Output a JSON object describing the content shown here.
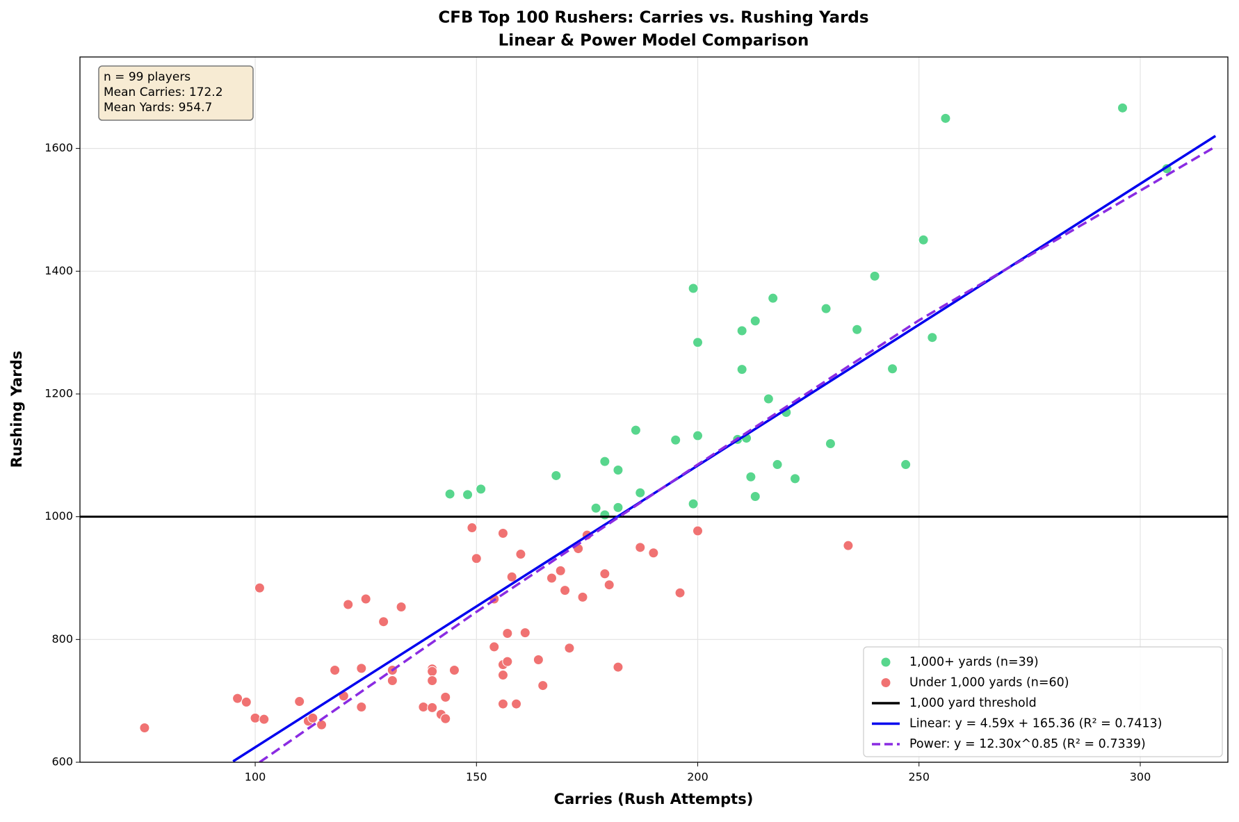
{
  "chart_data": {
    "type": "scatter",
    "title": "CFB Top 100 Rushers: Carries vs. Rushing Yards",
    "subtitle": "Linear & Power Model Comparison",
    "xlabel": "Carries (Rush Attempts)",
    "ylabel": "Rushing Yards",
    "xlim": [
      60.4,
      319.8
    ],
    "ylim": [
      600,
      1749
    ],
    "xticks": [
      100,
      150,
      200,
      250,
      300
    ],
    "yticks": [
      600,
      800,
      1000,
      1200,
      1400,
      1600
    ],
    "grid": true,
    "legend": "lower right",
    "info": [
      "n = 99 players",
      "Mean Carries: 172.2",
      "Mean Yards: 954.7"
    ],
    "series": [
      {
        "name": "1,000+ yards (n=39)",
        "kind": "scatter",
        "color": "#58d68d",
        "x": [
          144,
          148,
          151,
          168,
          177,
          179,
          179,
          182,
          182,
          186,
          187,
          195,
          199,
          199,
          200,
          200,
          209,
          210,
          210,
          211,
          212,
          213,
          213,
          216,
          217,
          218,
          220,
          222,
          229,
          230,
          236,
          240,
          244,
          247,
          251,
          253,
          256,
          296,
          306
        ],
        "values": [
          1037,
          1036,
          1045,
          1067,
          1014,
          1003,
          1090,
          1076,
          1015,
          1141,
          1039,
          1125,
          1372,
          1021,
          1284,
          1132,
          1126,
          1303,
          1240,
          1128,
          1065,
          1319,
          1033,
          1192,
          1356,
          1085,
          1170,
          1062,
          1339,
          1119,
          1305,
          1392,
          1241,
          1085,
          1451,
          1292,
          1649,
          1666,
          1567
        ]
      },
      {
        "name": "Under 1,000 yards (n=60)",
        "kind": "scatter",
        "color": "#f07272",
        "x": [
          75,
          96,
          98,
          100,
          101,
          102,
          110,
          112,
          113,
          115,
          118,
          120,
          121,
          124,
          124,
          125,
          129,
          131,
          131,
          133,
          138,
          140,
          140,
          140,
          140,
          142,
          143,
          143,
          145,
          149,
          150,
          154,
          154,
          156,
          156,
          156,
          156,
          157,
          157,
          158,
          159,
          160,
          161,
          164,
          165,
          167,
          169,
          170,
          171,
          173,
          174,
          175,
          179,
          180,
          182,
          187,
          190,
          196,
          200,
          234
        ],
        "values": [
          656,
          704,
          698,
          672,
          884,
          670,
          699,
          667,
          672,
          661,
          750,
          708,
          857,
          753,
          690,
          866,
          829,
          750,
          733,
          853,
          690,
          752,
          748,
          733,
          689,
          678,
          706,
          671,
          750,
          982,
          932,
          788,
          866,
          973,
          759,
          742,
          695,
          810,
          764,
          902,
          695,
          939,
          811,
          767,
          725,
          900,
          912,
          880,
          786,
          948,
          869,
          970,
          907,
          889,
          755,
          950,
          941,
          876,
          977,
          953
        ]
      },
      {
        "name": "1,000 yard threshold",
        "kind": "hline",
        "color": "#000000",
        "values": [
          1000
        ]
      },
      {
        "name": "Linear: y = 4.59x + 165.36 (R² = 0.7413)",
        "kind": "line",
        "color": "#0000ee",
        "x": [
          95,
          317
        ],
        "values": [
          601.4,
          1620.4
        ]
      },
      {
        "name": "Power: y = 12.30x^0.85 (R² = 0.7339)",
        "kind": "line",
        "style": "dashed",
        "color": "#8a2be2",
        "x": [
          101,
          150,
          200,
          250,
          317
        ],
        "values": [
          600,
          845,
          1085,
          1320,
          1603
        ]
      }
    ]
  }
}
